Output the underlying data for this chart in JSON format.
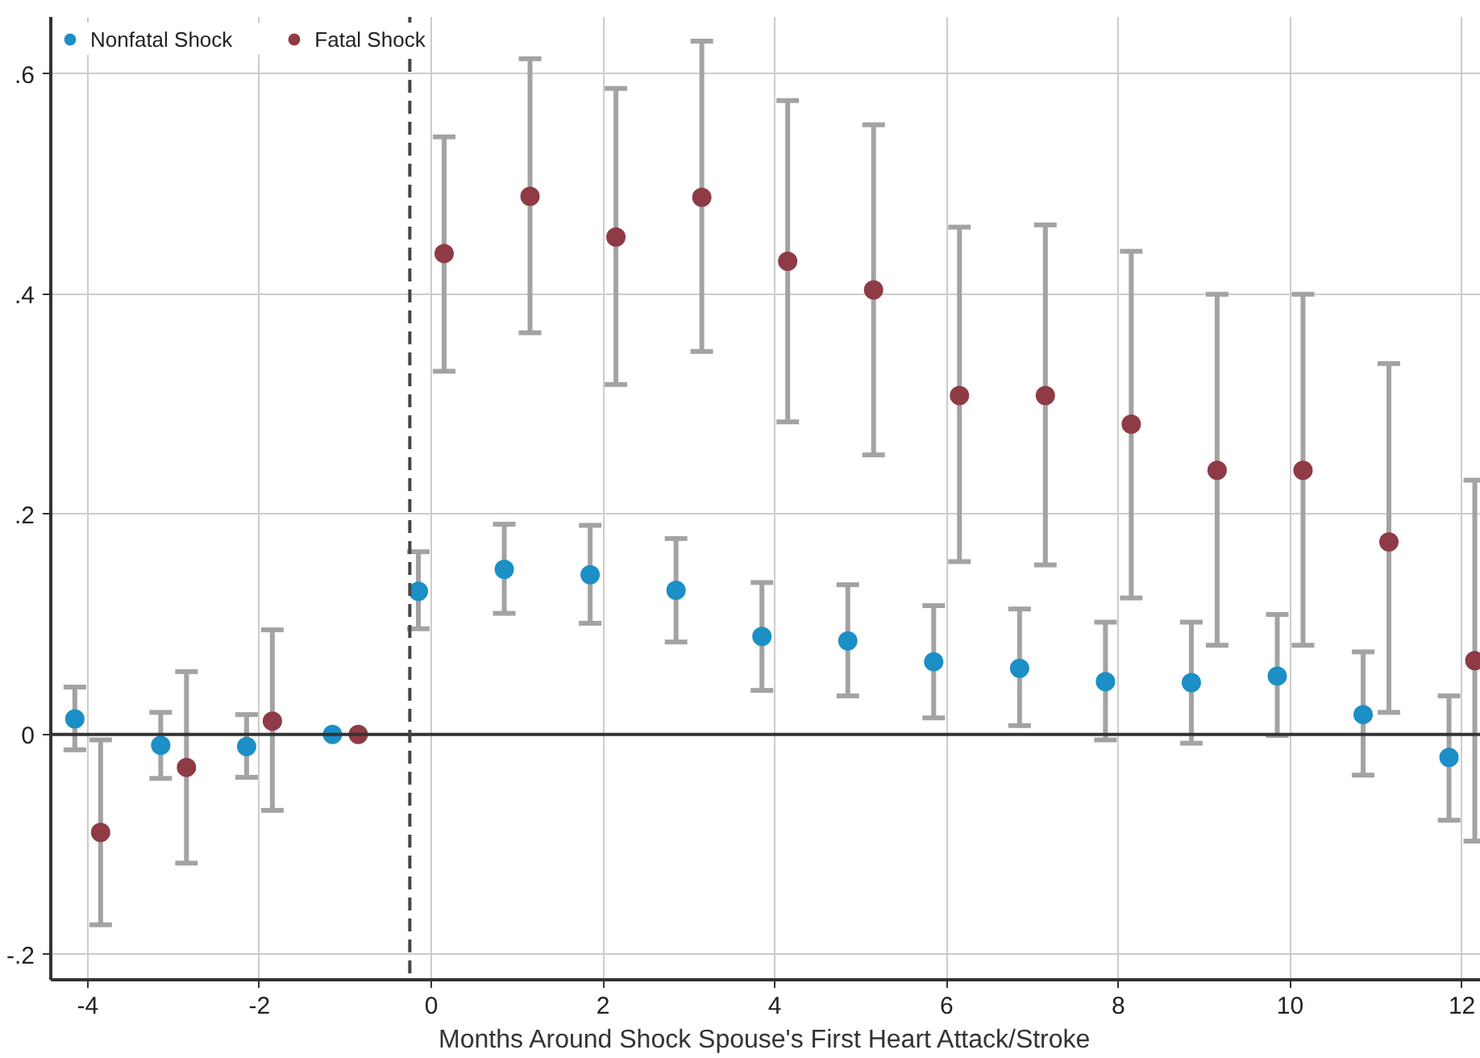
{
  "chart_data": {
    "type": "scatter",
    "xlabel": "Months Around Shock Spouse's First Heart Attack/Stroke",
    "series": [
      {
        "name": "Nonfatal Shock",
        "color": "#1b8fc6",
        "x": [
          -4.15,
          -3.15,
          -2.15,
          -1.15,
          -0.15,
          0.85,
          1.85,
          2.85,
          3.85,
          4.85,
          5.85,
          6.85,
          7.85,
          8.85,
          9.85,
          10.85,
          11.85
        ],
        "values": [
          0.014,
          -0.01,
          -0.011,
          0,
          0.13,
          0.15,
          0.145,
          0.131,
          0.089,
          0.085,
          0.066,
          0.06,
          0.048,
          0.047,
          0.053,
          0.018,
          -0.021
        ],
        "errors": [
          [
            -0.014,
            0.043
          ],
          [
            -0.04,
            0.02
          ],
          [
            -0.039,
            0.018
          ],
          null,
          [
            0.096,
            0.166
          ],
          [
            0.11,
            0.191
          ],
          [
            0.101,
            0.19
          ],
          [
            0.084,
            0.178
          ],
          [
            0.04,
            0.138
          ],
          [
            0.035,
            0.136
          ],
          [
            0.015,
            0.117
          ],
          [
            0.008,
            0.114
          ],
          [
            -0.005,
            0.102
          ],
          [
            -0.008,
            0.102
          ],
          [
            -0.001,
            0.109
          ],
          [
            -0.037,
            0.075
          ],
          [
            -0.078,
            0.035
          ]
        ]
      },
      {
        "name": "Fatal Shock",
        "color": "#8e3b46",
        "x": [
          -3.85,
          -2.85,
          -1.85,
          -0.85,
          0.15,
          1.15,
          2.15,
          3.15,
          4.15,
          5.15,
          6.15,
          7.15,
          8.15,
          9.15,
          10.15,
          11.15,
          12.15
        ],
        "values": [
          -0.089,
          -0.03,
          0.012,
          0,
          0.437,
          0.489,
          0.452,
          0.488,
          0.43,
          0.404,
          0.308,
          0.308,
          0.282,
          0.24,
          0.24,
          0.175,
          0.067
        ],
        "errors": [
          [
            -0.173,
            -0.005
          ],
          [
            -0.117,
            0.057
          ],
          [
            -0.069,
            0.095
          ],
          null,
          [
            0.33,
            0.543
          ],
          [
            0.365,
            0.614
          ],
          [
            0.318,
            0.587
          ],
          [
            0.348,
            0.63
          ],
          [
            0.284,
            0.576
          ],
          [
            0.254,
            0.554
          ],
          [
            0.157,
            0.461
          ],
          [
            0.154,
            0.463
          ],
          [
            0.124,
            0.439
          ],
          [
            0.081,
            0.4
          ],
          [
            0.081,
            0.4
          ],
          [
            0.02,
            0.337
          ],
          [
            -0.097,
            0.231
          ]
        ]
      }
    ],
    "xlim": [
      -4.43,
      12.22
    ],
    "ylim": [
      -0.223,
      0.652
    ],
    "xticks": [
      -4,
      -2,
      0,
      2,
      4,
      6,
      8,
      10,
      12
    ],
    "yticks": [
      {
        "value": -0.2,
        "label": "-.2"
      },
      0,
      {
        "value": 0.2,
        "label": ".2"
      },
      {
        "value": 0.4,
        "label": ".4"
      },
      {
        "value": 0.6,
        "label": ".6"
      }
    ],
    "ref_lines": [
      {
        "axis": "y",
        "value": 0,
        "color": "#333333",
        "line_style": "solid"
      },
      {
        "axis": "x",
        "value": -0.25,
        "color": "#444444",
        "line_style": "dashed"
      }
    ],
    "grid": true,
    "legend": "top left",
    "marker": "circle"
  }
}
